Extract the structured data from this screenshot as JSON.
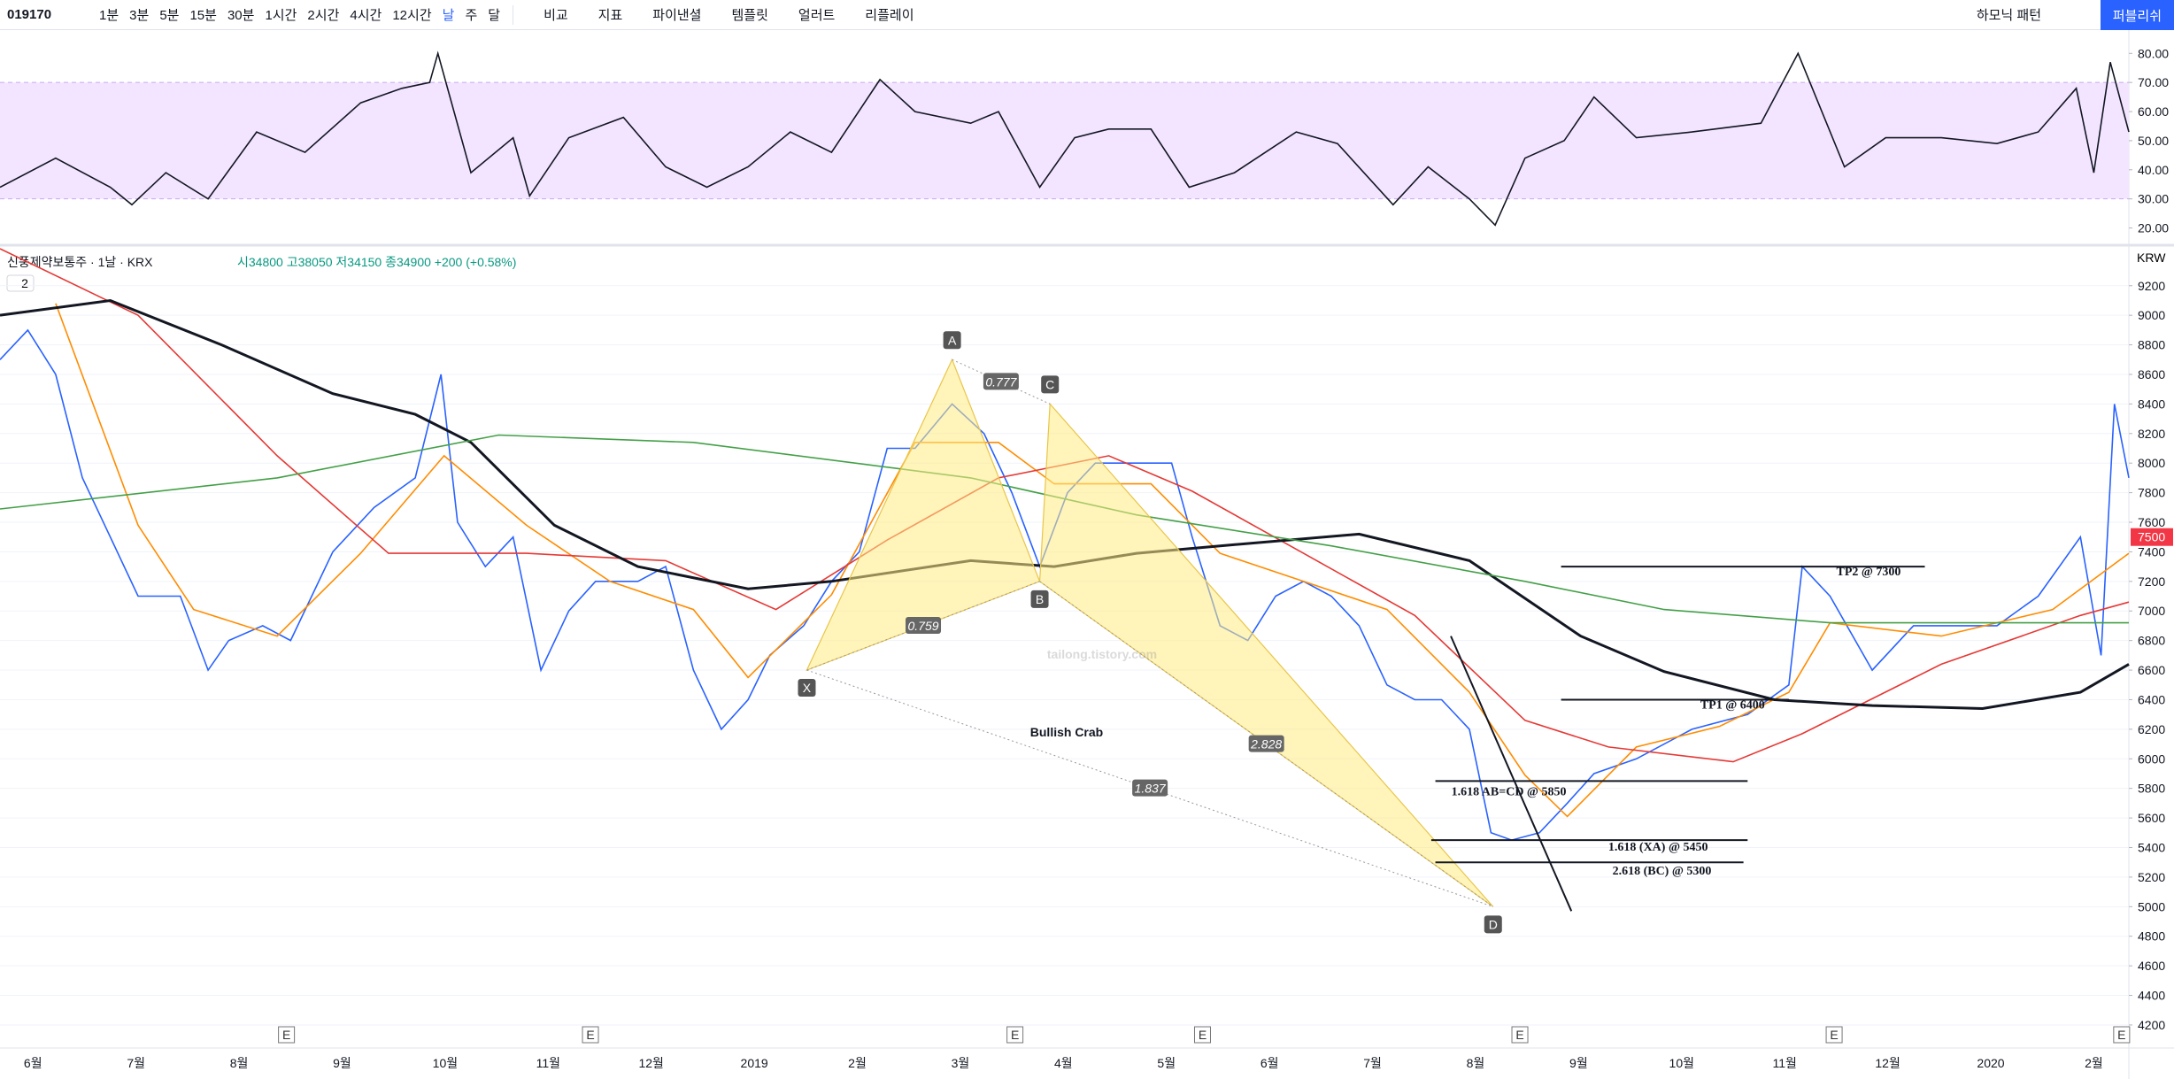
{
  "toolbar": {
    "symbol": "019170",
    "intervals": [
      "1분",
      "3분",
      "5분",
      "15분",
      "30분",
      "1시간",
      "2시간",
      "4시간",
      "12시간",
      "날",
      "주",
      "달"
    ],
    "tools": [
      "비교",
      "지표",
      "파이낸셜",
      "템플릿",
      "얼러트",
      "리플레이"
    ],
    "pattern_tool": "하모닉 패턴",
    "publish": "퍼블리쉬"
  },
  "legend": {
    "title": "신풍제약보통주 · 1날 · KRX",
    "ohlc": "시34800 고38050 저34150 종34900 +200 (+0.58%)",
    "badge": "2",
    "currency": "KRW"
  },
  "annotations": {
    "pattern_name": "Bullish Crab",
    "watermark": "tailong.tistory.com"
  },
  "chart_data": [
    {
      "type": "line",
      "panel": "rsi",
      "ylim": [
        15,
        88
      ],
      "band": [
        30,
        70
      ],
      "yticks": [
        {
          "value": 20,
          "label": "20.00"
        },
        {
          "value": 30,
          "label": "30.00"
        },
        {
          "value": 40,
          "label": "40.00"
        },
        {
          "value": 50,
          "label": "50.00"
        },
        {
          "value": 60,
          "label": "60.00"
        },
        {
          "value": 70,
          "label": "70.00"
        },
        {
          "value": 80,
          "label": "80.00"
        }
      ],
      "xlim": [
        -0.32,
        20.34
      ],
      "series": [
        {
          "color": "#131722",
          "x": [
            -0.32,
            0.22,
            0.75,
            0.96,
            1.29,
            1.7,
            2.17,
            2.64,
            3.18,
            3.58,
            3.85,
            3.93,
            4.25,
            4.66,
            4.82,
            5.2,
            5.73,
            6.14,
            6.54,
            6.94,
            7.35,
            7.75,
            8.22,
            8.56,
            9.1,
            9.37,
            9.77,
            10.11,
            10.44,
            10.85,
            11.22,
            11.66,
            12.26,
            12.66,
            13.2,
            13.54,
            13.94,
            14.19,
            14.48,
            14.86,
            15.15,
            15.56,
            16.1,
            16.77,
            17.13,
            17.58,
            17.98,
            18.52,
            19.06,
            19.46,
            19.83,
            20,
            20.16,
            20.34
          ],
          "values": [
            34,
            44,
            34,
            28,
            39,
            30,
            53,
            46,
            63,
            68,
            70,
            80,
            39,
            51,
            31,
            51,
            58,
            41,
            34,
            41,
            53,
            46,
            71,
            60,
            56,
            60,
            34,
            51,
            54,
            54,
            34,
            39,
            53,
            49,
            28,
            41,
            30,
            21,
            44,
            50,
            65,
            51,
            53,
            56,
            80,
            41,
            51,
            51,
            49,
            53,
            68,
            39,
            77,
            53
          ]
        }
      ]
    },
    {
      "type": "line",
      "panel": "price",
      "ylim": [
        4050,
        9450
      ],
      "xlim": [
        -0.32,
        20.34
      ],
      "grid": true,
      "last_price": 7500,
      "yticks": [
        4200,
        4400,
        4600,
        4800,
        5000,
        5200,
        5400,
        5600,
        5800,
        6000,
        6200,
        6400,
        6600,
        6800,
        7000,
        7200,
        7400,
        7600,
        7800,
        8000,
        8200,
        8400,
        8600,
        8800,
        9000,
        9200
      ],
      "xticks": [
        {
          "value": 0,
          "label": "6월"
        },
        {
          "value": 1,
          "label": "7월"
        },
        {
          "value": 2,
          "label": "8월"
        },
        {
          "value": 3,
          "label": "9월"
        },
        {
          "value": 4,
          "label": "10월"
        },
        {
          "value": 5,
          "label": "11월"
        },
        {
          "value": 6,
          "label": "12월"
        },
        {
          "value": 7,
          "label": "2019"
        },
        {
          "value": 8,
          "label": "2월"
        },
        {
          "value": 9,
          "label": "3월"
        },
        {
          "value": 10,
          "label": "4월"
        },
        {
          "value": 11,
          "label": "5월"
        },
        {
          "value": 12,
          "label": "6월"
        },
        {
          "value": 13,
          "label": "7월"
        },
        {
          "value": 14,
          "label": "8월"
        },
        {
          "value": 15,
          "label": "9월"
        },
        {
          "value": 16,
          "label": "10월"
        },
        {
          "value": 17,
          "label": "11월"
        },
        {
          "value": 18,
          "label": "12월"
        },
        {
          "value": 19,
          "label": "2020"
        },
        {
          "value": 20,
          "label": "2월"
        }
      ],
      "series": [
        {
          "color": "#2962ff",
          "x": [
            -0.32,
            -0.05,
            0.22,
            0.48,
            0.75,
            1.02,
            1.43,
            1.7,
            1.9,
            2.23,
            2.5,
            2.91,
            3.31,
            3.71,
            3.96,
            4.12,
            4.39,
            4.66,
            4.93,
            5.2,
            5.46,
            5.87,
            6.14,
            6.41,
            6.68,
            6.94,
            7.15,
            7.48,
            7.75,
            8.02,
            8.29,
            8.56,
            8.92,
            9.23,
            9.5,
            9.77,
            10.04,
            10.31,
            10.71,
            11.05,
            11.25,
            11.52,
            11.79,
            12.06,
            12.33,
            12.6,
            12.87,
            13.14,
            13.41,
            13.67,
            13.94,
            14.15,
            14.35,
            14.62,
            14.89,
            15.15,
            15.56,
            16.1,
            16.64,
            17.04,
            17.17,
            17.44,
            17.85,
            18.25,
            18.65,
            19.06,
            19.46,
            19.87,
            20.07,
            20.2,
            20.34
          ],
          "values": [
            8700,
            8900,
            8600,
            7900,
            7500,
            7100,
            7100,
            6600,
            6800,
            6900,
            6800,
            7400,
            7700,
            7900,
            8600,
            7600,
            7300,
            7500,
            6600,
            7000,
            7200,
            7200,
            7300,
            6600,
            6200,
            6400,
            6700,
            6900,
            7200,
            7400,
            8100,
            8100,
            8400,
            8200,
            7800,
            7300,
            7800,
            8000,
            8000,
            8000,
            7500,
            6900,
            6800,
            7100,
            7200,
            7100,
            6900,
            6500,
            6400,
            6400,
            6200,
            5500,
            5450,
            5500,
            5700,
            5900,
            6000,
            6200,
            6300,
            6500,
            7300,
            7100,
            6600,
            6900,
            6900,
            6900,
            7100,
            7500,
            6700,
            8400,
            7900
          ]
        },
        {
          "color": "#ff8c00",
          "x": [
            0.22,
            1.02,
            1.56,
            2.37,
            3.18,
            3.99,
            4.79,
            5.6,
            6.41,
            6.94,
            7.75,
            8.56,
            9.37,
            9.91,
            10.85,
            11.52,
            12.33,
            13.14,
            13.94,
            14.48,
            14.89,
            15.56,
            16.37,
            17.04,
            17.44,
            18.52,
            19.6,
            20.34
          ],
          "values": [
            9080,
            7580,
            7010,
            6830,
            7390,
            8050,
            7580,
            7200,
            7010,
            6550,
            7110,
            8140,
            8140,
            7860,
            7860,
            7390,
            7200,
            7010,
            6450,
            5890,
            5610,
            6080,
            6220,
            6450,
            6920,
            6830,
            7010,
            7390
          ]
        },
        {
          "color": "#e53935",
          "x": [
            -0.32,
            1.02,
            2.37,
            3.45,
            4.79,
            6.14,
            7.21,
            8.29,
            9.37,
            10.44,
            11.25,
            12.33,
            13.41,
            14.48,
            15.29,
            16.5,
            17.17,
            18.52,
            19.87,
            20.34
          ],
          "values": [
            9450,
            9000,
            8050,
            7390,
            7390,
            7340,
            7010,
            7480,
            7900,
            8050,
            7810,
            7390,
            6970,
            6260,
            6080,
            5980,
            6170,
            6640,
            6970,
            7060
          ]
        },
        {
          "color": "#131722",
          "width": 3,
          "x": [
            -0.32,
            0.75,
            1.83,
            2.91,
            3.71,
            4.25,
            5.06,
            5.87,
            6.94,
            7.75,
            9.1,
            9.91,
            10.71,
            11.52,
            12.87,
            13.94,
            15.02,
            15.83,
            16.9,
            17.85,
            18.92,
            19.87,
            20.34
          ],
          "values": [
            9000,
            9100,
            8800,
            8470,
            8330,
            8140,
            7580,
            7300,
            7150,
            7200,
            7340,
            7300,
            7390,
            7440,
            7520,
            7340,
            6830,
            6590,
            6400,
            6360,
            6340,
            6450,
            6640
          ]
        },
        {
          "color": "#43a047",
          "x": [
            -0.32,
            2.37,
            4.52,
            6.41,
            9.1,
            10.71,
            12.6,
            14.48,
            15.83,
            17.44,
            20.34
          ],
          "values": [
            7690,
            7900,
            8190,
            8140,
            7900,
            7650,
            7440,
            7200,
            7010,
            6920,
            6920
          ]
        }
      ],
      "pattern": {
        "points": [
          {
            "label": "X",
            "x": 7.51,
            "y": 6600
          },
          {
            "label": "A",
            "x": 8.92,
            "y": 8700
          },
          {
            "label": "B",
            "x": 9.77,
            "y": 7200
          },
          {
            "label": "C",
            "x": 9.87,
            "y": 8400
          },
          {
            "label": "D",
            "x": 14.17,
            "y": 5000
          }
        ],
        "ratios": [
          {
            "from": 1,
            "to": 3,
            "value": 0.777
          },
          {
            "from": 0,
            "to": 2,
            "value": 0.759
          },
          {
            "from": 2,
            "to": 4,
            "value": 2.828
          },
          {
            "from": 0,
            "to": 4,
            "value": 1.837
          }
        ]
      },
      "levels": [
        {
          "label": "TP2 @ 7300",
          "value": 7300,
          "x": [
            14.83,
            18.36
          ]
        },
        {
          "label": "TP1 @ 6400",
          "value": 6400,
          "x": [
            14.83,
            17.04
          ]
        },
        {
          "label": "1.618 AB=CD @ 5850",
          "value": 5850,
          "x": [
            13.61,
            16.64
          ]
        },
        {
          "label": "1.618 (XA) @ 5450",
          "value": 5450,
          "x": [
            13.57,
            16.64
          ]
        },
        {
          "label": "2.618 (BC) @ 5300",
          "value": 5300,
          "x": [
            13.61,
            16.6
          ]
        }
      ],
      "trend_line": {
        "x": [
          13.76,
          14.93
        ],
        "values": [
          6830,
          4970
        ]
      },
      "earnings": {
        "label": "E",
        "x": [
          2.46,
          5.41,
          9.53,
          11.35,
          14.43,
          17.48,
          20.27
        ]
      }
    }
  ]
}
